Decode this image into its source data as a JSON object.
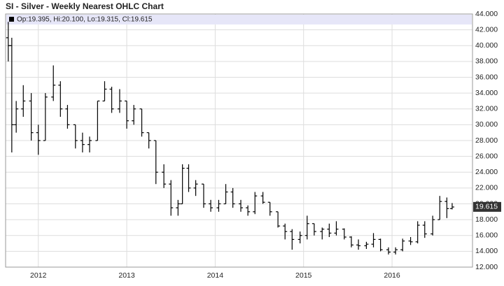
{
  "chart_data": {
    "type": "ohlc",
    "title": "SI - Silver - Weekly Nearest OHLC Chart",
    "legend_text": "Op:19.395, Hi:20.100, Lo:19.315, Cl:19.615",
    "last_price": {
      "value": 19.615,
      "label": "19.615"
    },
    "color": "#000000",
    "grid": true,
    "x": [
      2011.66,
      2011.7,
      2011.75,
      2011.83,
      2011.92,
      2012.0,
      2012.08,
      2012.17,
      2012.25,
      2012.33,
      2012.42,
      2012.5,
      2012.58,
      2012.67,
      2012.75,
      2012.83,
      2012.92,
      2013.0,
      2013.08,
      2013.17,
      2013.25,
      2013.33,
      2013.42,
      2013.5,
      2013.58,
      2013.63,
      2013.7,
      2013.78,
      2013.87,
      2013.95,
      2014.04,
      2014.12,
      2014.2,
      2014.29,
      2014.37,
      2014.45,
      2014.54,
      2014.62,
      2014.71,
      2014.79,
      2014.87,
      2014.96,
      2015.04,
      2015.12,
      2015.21,
      2015.29,
      2015.37,
      2015.46,
      2015.54,
      2015.62,
      2015.71,
      2015.79,
      2015.87,
      2015.96,
      2016.04,
      2016.12,
      2016.21,
      2016.29,
      2016.37,
      2016.46,
      2016.54,
      2016.62,
      2016.68
    ],
    "open": [
      41,
      40,
      30,
      32,
      33,
      29,
      28,
      33.5,
      35,
      32,
      30,
      28,
      27.5,
      28,
      33,
      34.5,
      32,
      33,
      30.5,
      32,
      29,
      28,
      24,
      22.5,
      19.5,
      20,
      24.5,
      22,
      22.5,
      20,
      19.5,
      20,
      21.5,
      20,
      19.5,
      19,
      21,
      20.2,
      19,
      17.2,
      16.5,
      15.5,
      16,
      17.5,
      16.5,
      16.8,
      16.3,
      16.8,
      15.8,
      14.8,
      14.7,
      14.9,
      15.5,
      14.2,
      13.9,
      14.2,
      15.3,
      15.2,
      17.3,
      16.2,
      18,
      20.3,
      19.4
    ],
    "high": [
      43,
      41,
      33,
      35,
      34,
      30,
      34,
      37.5,
      35.5,
      32.5,
      30,
      29,
      28.5,
      33,
      35.5,
      34.8,
      34.5,
      33,
      32.5,
      32,
      29,
      28,
      25,
      23,
      20.5,
      25,
      25,
      23,
      22.5,
      20.5,
      20.5,
      22.5,
      22,
      20.5,
      19.8,
      21.5,
      21.5,
      20.2,
      19,
      17.5,
      16.8,
      16.5,
      18.5,
      17.5,
      17,
      17.5,
      17.8,
      16.9,
      15.9,
      15.5,
      15.2,
      16.3,
      15.6,
      14.5,
      14.5,
      15.6,
      15.8,
      17.8,
      17.8,
      18.5,
      21,
      20.8,
      20.1
    ],
    "low": [
      38,
      26.5,
      29,
      31,
      28,
      26.2,
      28,
      33,
      31,
      29.5,
      27,
      26.5,
      26.5,
      28,
      33,
      31.5,
      31.5,
      29.5,
      30,
      28.5,
      27,
      22.5,
      22,
      18.5,
      18.5,
      20,
      21.5,
      21,
      19.5,
      19,
      19,
      20,
      19.5,
      19,
      18.5,
      18.7,
      20,
      18.5,
      17,
      15.5,
      14.2,
      15,
      15.5,
      16,
      15.5,
      15.8,
      16,
      15.5,
      14.5,
      14.2,
      14.3,
      14.5,
      14,
      13.6,
      13.6,
      14,
      14.8,
      15,
      15.7,
      16,
      18,
      18.2,
      19.3
    ],
    "close": [
      40,
      30,
      32,
      33,
      29,
      28,
      33.5,
      35,
      32,
      30,
      28,
      27.5,
      28,
      33,
      34.5,
      32,
      33,
      30.5,
      32,
      29,
      28,
      24,
      22.5,
      19.5,
      20,
      24.5,
      22,
      22.5,
      20,
      19.5,
      20,
      21.5,
      20,
      19.5,
      19,
      21,
      20.2,
      19,
      17.2,
      16.5,
      15.5,
      16,
      17.5,
      16.5,
      16.8,
      16.3,
      16.8,
      15.8,
      14.8,
      14.7,
      14.9,
      15.5,
      14.2,
      13.9,
      14.2,
      15.3,
      15.2,
      17.3,
      16.2,
      18,
      20.3,
      19.4,
      19.6
    ],
    "xlim": [
      2011.63,
      2016.91
    ],
    "xticks": [
      2012,
      2013,
      2014,
      2015,
      2016
    ],
    "ylim": [
      12,
      44
    ],
    "yticks": [
      {
        "value": 12,
        "label": "12.000"
      },
      {
        "value": 14,
        "label": "14.000"
      },
      {
        "value": 16,
        "label": "16.000"
      },
      {
        "value": 18,
        "label": "18.000"
      },
      {
        "value": 20,
        "label": "20.000"
      },
      {
        "value": 22,
        "label": "22.000"
      },
      {
        "value": 24,
        "label": "24.000"
      },
      {
        "value": 26,
        "label": "26.000"
      },
      {
        "value": 28,
        "label": "28.000"
      },
      {
        "value": 30,
        "label": "30.000"
      },
      {
        "value": 32,
        "label": "32.000"
      },
      {
        "value": 34,
        "label": "34.000"
      },
      {
        "value": 36,
        "label": "36.000"
      },
      {
        "value": 38,
        "label": "38.000"
      },
      {
        "value": 40,
        "label": "40.000"
      },
      {
        "value": 42,
        "label": "42.000"
      },
      {
        "value": 44,
        "label": "44.000"
      }
    ]
  }
}
